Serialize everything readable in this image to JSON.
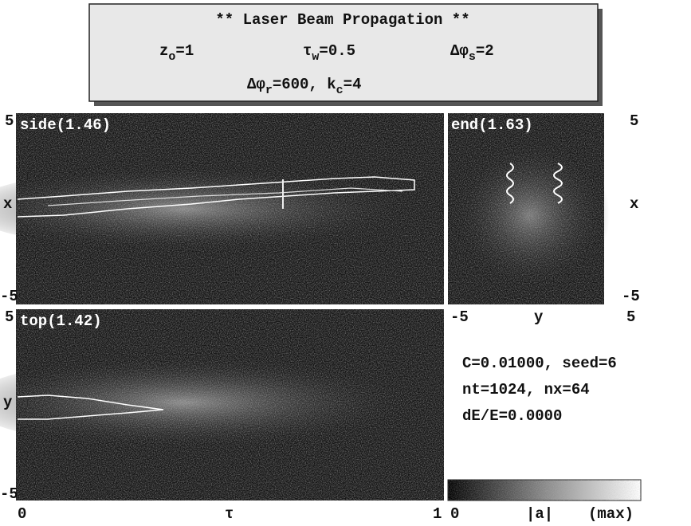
{
  "header": {
    "title": "** Laser Beam Propagation **",
    "params": [
      {
        "symbol": "z",
        "sub": "o",
        "value": "=1"
      },
      {
        "symbol": "τ",
        "sub": "w",
        "value": "=0.5"
      },
      {
        "symbol": "Δφ",
        "sub": "s",
        "value": "=2"
      }
    ],
    "line3": {
      "symbol": "Δφ",
      "sub": "r",
      "mid": "=600, k",
      "sub2": "c",
      "value": "=4"
    }
  },
  "panels": {
    "side": {
      "label": "side(1.46)",
      "y_top": "5",
      "y_mid": "x",
      "y_bottom": "-5"
    },
    "end": {
      "label": "end(1.63)",
      "y_top": "5",
      "y_mid": "x",
      "y_bottom": "-5",
      "x_left": "-5",
      "x_mid": "y",
      "x_right": "5"
    },
    "top": {
      "label": "top(1.42)",
      "y_top": "5",
      "y_mid": "y",
      "y_bottom": "-5",
      "x_left": "0",
      "x_mid": "τ",
      "x_right": "1"
    }
  },
  "info": [
    "C=0.01000, seed=6",
    "nt=1024, nx=64",
    "dE/E=0.0000"
  ],
  "colorbar": {
    "left": "0",
    "mid": "|a|",
    "right": "(max)"
  }
}
